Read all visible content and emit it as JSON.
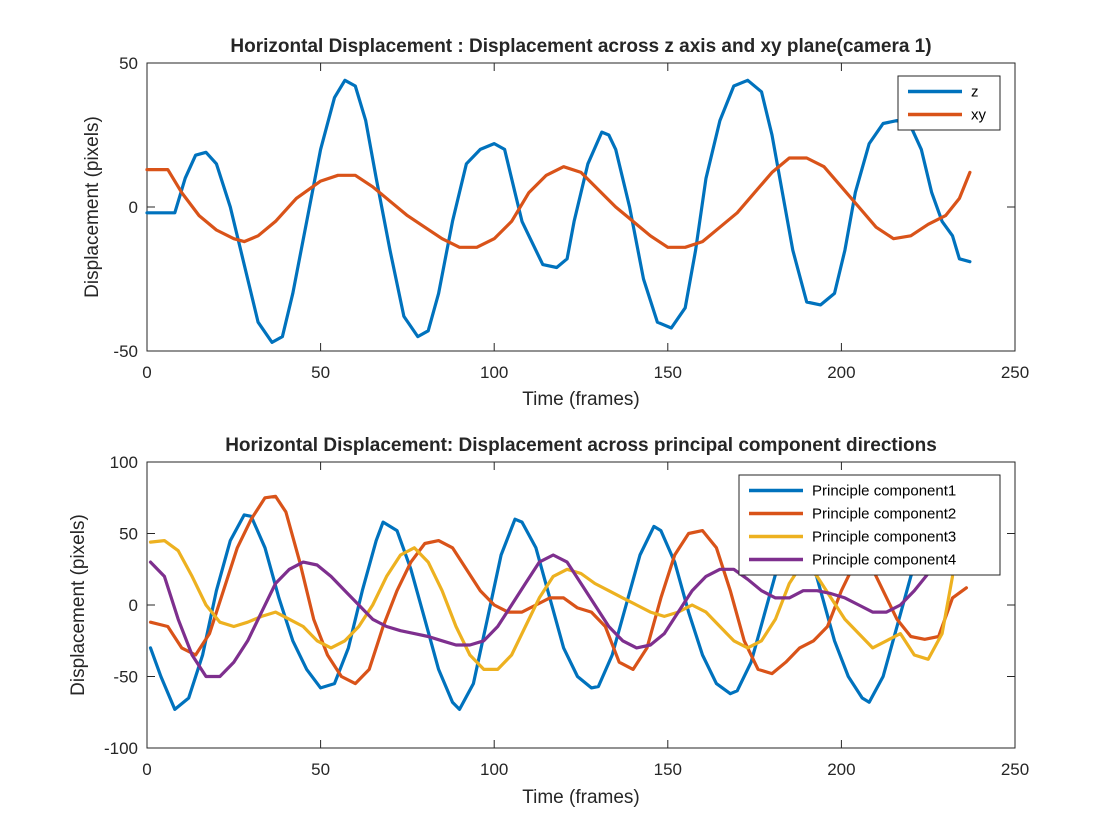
{
  "colors": {
    "blue": "#0072BD",
    "orange": "#D95319",
    "yellow": "#EDB120",
    "purple": "#7E2F8E"
  },
  "chart_data": [
    {
      "type": "line",
      "title": "Horizontal Displacement : Displacement across z axis and xy plane(camera 1)",
      "xlabel": "Time (frames)",
      "ylabel": "Displacement (pixels)",
      "xlim": [
        0,
        250
      ],
      "ylim": [
        -50,
        50
      ],
      "xticks": [
        "0",
        "50",
        "100",
        "150",
        "200",
        "250"
      ],
      "yticks": [
        "-50",
        "0",
        "50"
      ],
      "grid": false,
      "legend_position": "top-right",
      "series": [
        {
          "name": "z",
          "color": "#0072BD",
          "x": [
            0,
            5,
            8,
            11,
            14,
            17,
            20,
            24,
            28,
            32,
            36,
            39,
            42,
            46,
            50,
            54,
            57,
            60,
            63,
            66,
            70,
            74,
            78,
            81,
            84,
            88,
            92,
            96,
            100,
            103,
            106,
            108,
            110,
            114,
            118,
            121,
            123,
            127,
            131,
            133,
            135,
            139,
            143,
            147,
            151,
            155,
            158,
            161,
            165,
            169,
            173,
            177,
            180,
            183,
            186,
            190,
            194,
            198,
            201,
            204,
            208,
            212,
            216,
            220,
            223,
            226,
            229,
            232,
            234,
            237
          ],
          "y": [
            -2,
            -2,
            -2,
            10,
            18,
            19,
            15,
            0,
            -20,
            -40,
            -47,
            -45,
            -30,
            -5,
            20,
            38,
            44,
            42,
            30,
            10,
            -15,
            -38,
            -45,
            -43,
            -30,
            -5,
            15,
            20,
            22,
            20,
            5,
            -5,
            -10,
            -20,
            -21,
            -18,
            -5,
            15,
            26,
            25,
            20,
            0,
            -25,
            -40,
            -42,
            -35,
            -15,
            10,
            30,
            42,
            44,
            40,
            25,
            5,
            -15,
            -33,
            -34,
            -30,
            -15,
            5,
            22,
            29,
            30,
            28,
            20,
            5,
            -5,
            -10,
            -18,
            -19
          ]
        },
        {
          "name": "xy",
          "color": "#D95319",
          "x": [
            0,
            3,
            6,
            10,
            15,
            20,
            25,
            28,
            32,
            37,
            43,
            50,
            55,
            60,
            65,
            70,
            75,
            80,
            85,
            90,
            95,
            100,
            105,
            110,
            115,
            120,
            125,
            130,
            135,
            140,
            145,
            150,
            155,
            160,
            165,
            170,
            175,
            180,
            185,
            190,
            195,
            200,
            205,
            210,
            215,
            220,
            225,
            230,
            234,
            237
          ],
          "y": [
            13,
            13,
            13,
            5,
            -3,
            -8,
            -11,
            -12,
            -10,
            -5,
            3,
            9,
            11,
            11,
            7,
            2,
            -3,
            -7,
            -11,
            -14,
            -14,
            -11,
            -5,
            5,
            11,
            14,
            12,
            6,
            0,
            -5,
            -10,
            -14,
            -14,
            -12,
            -7,
            -2,
            5,
            12,
            17,
            17,
            14,
            7,
            0,
            -7,
            -11,
            -10,
            -6,
            -3,
            3,
            12
          ]
        }
      ]
    },
    {
      "type": "line",
      "title": "Horizontal Displacement: Displacement across principal component directions",
      "xlabel": "Time (frames)",
      "ylabel": "Displacement (pixels)",
      "xlim": [
        0,
        250
      ],
      "ylim": [
        -100,
        100
      ],
      "xticks": [
        "0",
        "50",
        "100",
        "150",
        "200",
        "250"
      ],
      "yticks": [
        "-100",
        "-50",
        "0",
        "50",
        "100"
      ],
      "grid": false,
      "legend_position": "top-right",
      "series": [
        {
          "name": "Principle component1",
          "color": "#0072BD",
          "x": [
            1,
            4,
            8,
            12,
            16,
            20,
            24,
            28,
            30,
            34,
            38,
            42,
            46,
            50,
            54,
            58,
            62,
            66,
            68,
            72,
            76,
            80,
            84,
            88,
            90,
            94,
            98,
            102,
            106,
            108,
            112,
            116,
            120,
            124,
            128,
            130,
            134,
            138,
            142,
            146,
            148,
            152,
            156,
            160,
            164,
            168,
            170,
            174,
            178,
            182,
            186,
            190,
            194,
            198,
            202,
            206,
            208,
            212,
            216,
            220,
            224,
            228
          ],
          "y": [
            -30,
            -50,
            -73,
            -65,
            -35,
            10,
            45,
            63,
            62,
            40,
            5,
            -25,
            -45,
            -58,
            -55,
            -30,
            10,
            45,
            58,
            52,
            25,
            -10,
            -45,
            -68,
            -73,
            -55,
            -10,
            35,
            60,
            58,
            40,
            5,
            -30,
            -50,
            -58,
            -57,
            -35,
            0,
            35,
            55,
            52,
            30,
            -5,
            -35,
            -55,
            -62,
            -60,
            -40,
            -5,
            30,
            50,
            45,
            10,
            -25,
            -50,
            -65,
            -68,
            -50,
            -15,
            20,
            45,
            60
          ]
        },
        {
          "name": "Principle component2",
          "color": "#D95319",
          "x": [
            1,
            6,
            10,
            14,
            18,
            22,
            26,
            30,
            34,
            37,
            40,
            44,
            48,
            52,
            56,
            60,
            64,
            68,
            72,
            76,
            80,
            84,
            88,
            92,
            96,
            100,
            104,
            108,
            112,
            116,
            120,
            124,
            128,
            132,
            136,
            140,
            144,
            148,
            152,
            156,
            160,
            164,
            168,
            172,
            176,
            180,
            184,
            188,
            192,
            196,
            200,
            204,
            208,
            212,
            216,
            220,
            224,
            228,
            232,
            236
          ],
          "y": [
            -12,
            -15,
            -30,
            -35,
            -20,
            10,
            40,
            60,
            75,
            76,
            65,
            30,
            -10,
            -35,
            -50,
            -55,
            -45,
            -15,
            10,
            30,
            43,
            45,
            40,
            25,
            10,
            0,
            -5,
            -5,
            0,
            5,
            5,
            -2,
            -5,
            -15,
            -40,
            -45,
            -30,
            5,
            35,
            50,
            52,
            40,
            10,
            -25,
            -45,
            -48,
            -40,
            -30,
            -25,
            -15,
            10,
            30,
            30,
            10,
            -10,
            -22,
            -24,
            -22,
            5,
            12
          ]
        },
        {
          "name": "Principle component3",
          "color": "#EDB120",
          "x": [
            1,
            5,
            9,
            13,
            17,
            21,
            25,
            29,
            33,
            37,
            41,
            45,
            49,
            53,
            57,
            61,
            65,
            69,
            73,
            77,
            81,
            85,
            89,
            93,
            97,
            101,
            105,
            109,
            113,
            117,
            121,
            125,
            129,
            133,
            137,
            141,
            145,
            149,
            153,
            157,
            161,
            165,
            169,
            173,
            177,
            181,
            185,
            189,
            193,
            197,
            201,
            205,
            209,
            213,
            217,
            221,
            225,
            229,
            232
          ],
          "y": [
            44,
            45,
            38,
            20,
            0,
            -12,
            -15,
            -12,
            -8,
            -5,
            -10,
            -15,
            -25,
            -30,
            -25,
            -15,
            0,
            20,
            35,
            40,
            30,
            10,
            -15,
            -35,
            -45,
            -45,
            -35,
            -15,
            5,
            20,
            25,
            22,
            15,
            10,
            5,
            0,
            -5,
            -8,
            -5,
            0,
            -5,
            -15,
            -25,
            -30,
            -25,
            -10,
            15,
            30,
            20,
            5,
            -10,
            -20,
            -30,
            -25,
            -20,
            -35,
            -38,
            -20,
            20
          ]
        },
        {
          "name": "Principle component4",
          "color": "#7E2F8E",
          "x": [
            1,
            5,
            9,
            13,
            17,
            21,
            25,
            29,
            33,
            37,
            41,
            45,
            49,
            53,
            57,
            61,
            65,
            69,
            73,
            77,
            81,
            85,
            89,
            93,
            97,
            101,
            105,
            109,
            113,
            117,
            121,
            125,
            129,
            133,
            137,
            141,
            145,
            149,
            153,
            157,
            161,
            165,
            169,
            173,
            177,
            181,
            185,
            189,
            193,
            197,
            201,
            205,
            209,
            213,
            217,
            221,
            225,
            229
          ],
          "y": [
            30,
            20,
            -10,
            -35,
            -50,
            -50,
            -40,
            -25,
            -5,
            15,
            25,
            30,
            28,
            20,
            10,
            0,
            -10,
            -15,
            -18,
            -20,
            -22,
            -25,
            -28,
            -28,
            -25,
            -15,
            0,
            15,
            30,
            35,
            30,
            15,
            0,
            -15,
            -25,
            -30,
            -28,
            -20,
            -5,
            10,
            20,
            25,
            25,
            18,
            10,
            5,
            5,
            10,
            10,
            8,
            5,
            0,
            -5,
            -5,
            0,
            10,
            22,
            30
          ]
        }
      ]
    }
  ]
}
